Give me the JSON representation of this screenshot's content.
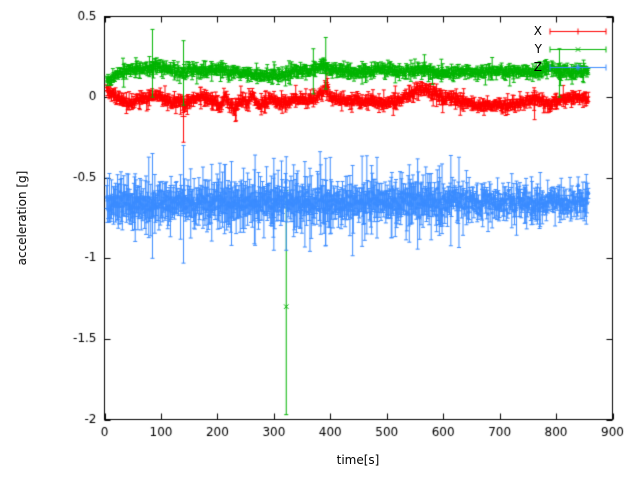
{
  "chart_data": {
    "type": "scatter",
    "title": "",
    "xlabel": "time[s]",
    "ylabel": "acceleration [g]",
    "xlim": [
      0,
      900
    ],
    "ylim": [
      -2,
      0.5
    ],
    "xticks": [
      0,
      100,
      200,
      300,
      400,
      500,
      600,
      700,
      800,
      900
    ],
    "yticks": [
      0.5,
      0,
      -0.5,
      -1,
      -1.5,
      -2
    ],
    "ytick_labels": [
      "0.5",
      "0",
      "-0.5",
      "-1",
      "-1.5",
      "-2"
    ],
    "legend_position": "top-right",
    "background": "#ffffff",
    "axis_color": "#000000",
    "grid": false,
    "style": "points-with-yerrorbars",
    "seed": 1337,
    "x_start": 4,
    "x_end": 858,
    "x_step": 1.2,
    "series": [
      {
        "name": "X",
        "color": "#ff0000",
        "marker": "plus",
        "noise": 0.012,
        "err_base": 0.015,
        "err_var": 0.012,
        "err_cap": 0.07,
        "anchors": [
          [
            4,
            0.05
          ],
          [
            14,
            0.02
          ],
          [
            24,
            -0.01
          ],
          [
            40,
            -0.03
          ],
          [
            55,
            -0.02
          ],
          [
            70,
            -0.01
          ],
          [
            85,
            0.01
          ],
          [
            95,
            0.02
          ],
          [
            105,
            -0.01
          ],
          [
            118,
            -0.03
          ],
          [
            130,
            -0.02
          ],
          [
            142,
            -0.05
          ],
          [
            152,
            -0.02
          ],
          [
            165,
            0.0
          ],
          [
            180,
            -0.01
          ],
          [
            195,
            -0.02
          ],
          [
            205,
            -0.06
          ],
          [
            213,
            0.01
          ],
          [
            222,
            -0.05
          ],
          [
            232,
            -0.08
          ],
          [
            242,
            -0.01
          ],
          [
            252,
            -0.04
          ],
          [
            262,
            0.01
          ],
          [
            272,
            -0.05
          ],
          [
            282,
            -0.03
          ],
          [
            295,
            -0.01
          ],
          [
            305,
            -0.03
          ],
          [
            318,
            -0.04
          ],
          [
            330,
            -0.02
          ],
          [
            345,
            -0.01
          ],
          [
            358,
            -0.02
          ],
          [
            372,
            -0.01
          ],
          [
            385,
            0.03
          ],
          [
            393,
            0.06
          ],
          [
            400,
            0.01
          ],
          [
            415,
            -0.02
          ],
          [
            430,
            -0.03
          ],
          [
            445,
            -0.02
          ],
          [
            460,
            -0.03
          ],
          [
            475,
            -0.02
          ],
          [
            490,
            -0.04
          ],
          [
            505,
            -0.03
          ],
          [
            520,
            -0.02
          ],
          [
            535,
            0.0
          ],
          [
            550,
            0.03
          ],
          [
            562,
            0.05
          ],
          [
            575,
            0.04
          ],
          [
            588,
            0.01
          ],
          [
            600,
            -0.01
          ],
          [
            612,
            0.0
          ],
          [
            625,
            -0.02
          ],
          [
            640,
            -0.04
          ],
          [
            655,
            -0.05
          ],
          [
            670,
            -0.06
          ],
          [
            685,
            -0.05
          ],
          [
            700,
            -0.05
          ],
          [
            715,
            -0.04
          ],
          [
            730,
            -0.04
          ],
          [
            745,
            -0.03
          ],
          [
            760,
            -0.02
          ],
          [
            772,
            -0.01
          ],
          [
            782,
            -0.04
          ],
          [
            790,
            -0.06
          ],
          [
            798,
            -0.03
          ],
          [
            808,
            -0.01
          ],
          [
            820,
            0.0
          ],
          [
            835,
            -0.01
          ],
          [
            848,
            -0.01
          ],
          [
            858,
            -0.01
          ]
        ],
        "special_errorbars": [
          {
            "x": 140,
            "y": -0.12,
            "lo": -0.28,
            "hi": -0.03
          },
          {
            "x": 394,
            "y": 0.06,
            "lo": -0.02,
            "hi": 0.15
          },
          {
            "x": 762,
            "y": -0.05,
            "lo": -0.14,
            "hi": 0.04
          }
        ],
        "outliers": []
      },
      {
        "name": "Y",
        "color": "#00b400",
        "marker": "cross",
        "noise": 0.012,
        "err_base": 0.015,
        "err_var": 0.012,
        "err_cap": 0.07,
        "anchors": [
          [
            4,
            0.1
          ],
          [
            10,
            0.11
          ],
          [
            18,
            0.13
          ],
          [
            28,
            0.15
          ],
          [
            40,
            0.16
          ],
          [
            55,
            0.17
          ],
          [
            70,
            0.17
          ],
          [
            82,
            0.18
          ],
          [
            90,
            0.2
          ],
          [
            98,
            0.18
          ],
          [
            110,
            0.17
          ],
          [
            125,
            0.17
          ],
          [
            140,
            0.16
          ],
          [
            155,
            0.17
          ],
          [
            170,
            0.16
          ],
          [
            185,
            0.17
          ],
          [
            200,
            0.17
          ],
          [
            215,
            0.16
          ],
          [
            230,
            0.15
          ],
          [
            245,
            0.15
          ],
          [
            260,
            0.14
          ],
          [
            275,
            0.13
          ],
          [
            290,
            0.14
          ],
          [
            305,
            0.14
          ],
          [
            320,
            0.14
          ],
          [
            335,
            0.15
          ],
          [
            350,
            0.16
          ],
          [
            365,
            0.16
          ],
          [
            380,
            0.18
          ],
          [
            390,
            0.2
          ],
          [
            398,
            0.17
          ],
          [
            412,
            0.16
          ],
          [
            428,
            0.16
          ],
          [
            442,
            0.15
          ],
          [
            458,
            0.16
          ],
          [
            472,
            0.16
          ],
          [
            488,
            0.17
          ],
          [
            502,
            0.17
          ],
          [
            518,
            0.16
          ],
          [
            532,
            0.16
          ],
          [
            548,
            0.17
          ],
          [
            562,
            0.17
          ],
          [
            578,
            0.16
          ],
          [
            592,
            0.15
          ],
          [
            608,
            0.15
          ],
          [
            622,
            0.15
          ],
          [
            638,
            0.16
          ],
          [
            652,
            0.15
          ],
          [
            668,
            0.16
          ],
          [
            682,
            0.16
          ],
          [
            698,
            0.16
          ],
          [
            712,
            0.15
          ],
          [
            728,
            0.16
          ],
          [
            742,
            0.16
          ],
          [
            758,
            0.15
          ],
          [
            772,
            0.16
          ],
          [
            785,
            0.18
          ],
          [
            795,
            0.17
          ],
          [
            805,
            0.15
          ],
          [
            815,
            0.16
          ],
          [
            828,
            0.15
          ],
          [
            842,
            0.16
          ],
          [
            858,
            0.16
          ]
        ],
        "special_errorbars": [
          {
            "x": 85,
            "y": 0.21,
            "lo": 0.0,
            "hi": 0.42
          },
          {
            "x": 140,
            "y": 0.16,
            "lo": -0.05,
            "hi": 0.35
          },
          {
            "x": 370,
            "y": 0.17,
            "lo": 0.02,
            "hi": 0.3
          },
          {
            "x": 392,
            "y": 0.2,
            "lo": 0.05,
            "hi": 0.37
          },
          {
            "x": 806,
            "y": 0.16,
            "lo": 0.0,
            "hi": 0.3
          }
        ],
        "outliers": [
          {
            "x": 322,
            "y": -1.3,
            "lo": -1.97,
            "hi": -0.58
          }
        ]
      },
      {
        "name": "Z",
        "color": "#3b8cff",
        "marker": "asterisk",
        "noise": 0.032,
        "err_base": 0.05,
        "err_var": 0.05,
        "err_cap": 0.28,
        "err_taper_x": 630,
        "err_taper_factor": 0.6,
        "anchors": [
          [
            4,
            -0.63
          ],
          [
            20,
            -0.65
          ],
          [
            40,
            -0.66
          ],
          [
            60,
            -0.65
          ],
          [
            80,
            -0.67
          ],
          [
            100,
            -0.65
          ],
          [
            120,
            -0.66
          ],
          [
            140,
            -0.66
          ],
          [
            160,
            -0.65
          ],
          [
            180,
            -0.65
          ],
          [
            200,
            -0.66
          ],
          [
            220,
            -0.66
          ],
          [
            240,
            -0.65
          ],
          [
            260,
            -0.65
          ],
          [
            280,
            -0.66
          ],
          [
            300,
            -0.66
          ],
          [
            320,
            -0.65
          ],
          [
            340,
            -0.66
          ],
          [
            360,
            -0.66
          ],
          [
            380,
            -0.65
          ],
          [
            400,
            -0.65
          ],
          [
            420,
            -0.66
          ],
          [
            440,
            -0.66
          ],
          [
            460,
            -0.65
          ],
          [
            480,
            -0.65
          ],
          [
            500,
            -0.66
          ],
          [
            520,
            -0.66
          ],
          [
            540,
            -0.65
          ],
          [
            560,
            -0.65
          ],
          [
            580,
            -0.66
          ],
          [
            600,
            -0.66
          ],
          [
            620,
            -0.65
          ],
          [
            640,
            -0.65
          ],
          [
            660,
            -0.65
          ],
          [
            680,
            -0.65
          ],
          [
            700,
            -0.66
          ],
          [
            720,
            -0.65
          ],
          [
            740,
            -0.65
          ],
          [
            760,
            -0.66
          ],
          [
            780,
            -0.65
          ],
          [
            800,
            -0.65
          ],
          [
            820,
            -0.66
          ],
          [
            840,
            -0.65
          ],
          [
            858,
            -0.65
          ]
        ],
        "special_errorbars": [
          {
            "x": 85,
            "y": -0.67,
            "lo": -1.0,
            "hi": -0.35
          },
          {
            "x": 140,
            "y": -0.66,
            "lo": -1.03,
            "hi": -0.3
          },
          {
            "x": 225,
            "y": -0.66,
            "lo": -0.92,
            "hi": -0.4
          },
          {
            "x": 300,
            "y": -0.66,
            "lo": -0.95,
            "hi": -0.38
          },
          {
            "x": 322,
            "y": -0.65,
            "lo": -0.95,
            "hi": -0.37
          },
          {
            "x": 355,
            "y": -0.66,
            "lo": -0.93,
            "hi": -0.4
          },
          {
            "x": 392,
            "y": -0.65,
            "lo": -0.92,
            "hi": -0.38
          },
          {
            "x": 540,
            "y": -0.66,
            "lo": -0.9,
            "hi": -0.42
          }
        ],
        "outliers": []
      }
    ]
  }
}
